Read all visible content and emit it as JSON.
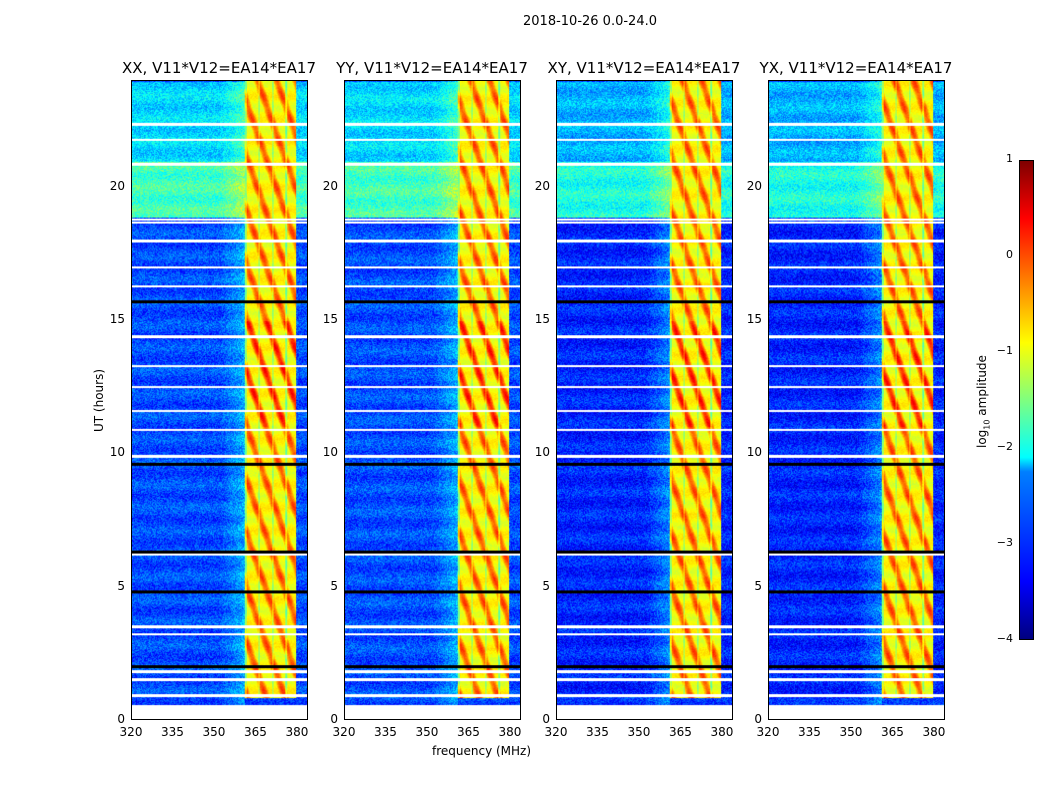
{
  "suptitle": "2018-10-26 0.0-24.0",
  "chart_data": {
    "type": "heatmap",
    "panels": [
      {
        "title": "XX, V11*V12=EA14*EA17"
      },
      {
        "title": "YY, V11*V12=EA14*EA17"
      },
      {
        "title": "XY, V11*V12=EA14*EA17"
      },
      {
        "title": "YX, V11*V12=EA14*EA17"
      }
    ],
    "xlabel": "frequency (MHz)",
    "ylabel": "UT (hours)",
    "xlim": [
      320,
      384
    ],
    "ylim": [
      0,
      24
    ],
    "xticks": [
      "320",
      "335",
      "350",
      "365",
      "380"
    ],
    "xtick_values": [
      320,
      335,
      350,
      365,
      380
    ],
    "yticks": [
      "0",
      "5",
      "10",
      "15",
      "20"
    ],
    "ytick_values": [
      0,
      5,
      10,
      15,
      20
    ],
    "colorbar": {
      "label_prefix": "log",
      "label_sub": "10",
      "label_suffix": " amplitude",
      "range": [
        -4,
        1
      ],
      "ticks": [
        "1",
        "0",
        "−1",
        "−2",
        "−3",
        "−4"
      ],
      "tick_values": [
        1,
        0,
        -1,
        -2,
        -3,
        -4
      ],
      "colormap": "jet"
    },
    "rfi_band_mhz": [
      361,
      380
    ],
    "rfi_level": -0.9,
    "background_levels": [
      {
        "ut": [
          0,
          18.9
        ],
        "level": -3.0
      },
      {
        "ut": [
          18.9,
          21.0
        ],
        "level": -1.8
      },
      {
        "ut": [
          21.0,
          24
        ],
        "level": -2.3
      }
    ],
    "flagged_ut_hours": [
      0.3,
      0.9,
      1.5,
      1.8,
      3.2,
      3.5,
      6.2,
      9.9,
      10.9,
      11.6,
      12.5,
      13.3,
      14.4,
      16.3,
      17.0,
      18.0,
      18.7,
      18.8,
      20.9,
      21.8,
      22.4
    ],
    "zero_ut_hours": [
      15.7,
      9.6,
      6.3,
      4.8,
      2.0
    ]
  }
}
